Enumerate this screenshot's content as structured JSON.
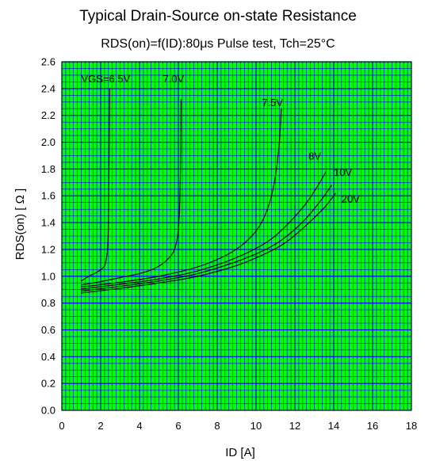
{
  "chart_data": {
    "type": "line",
    "title": "Typical Drain-Source on-state Resistance",
    "subtitle": "RDS(on)=f(ID):80μs Pulse test, Tch=25°C",
    "xlabel": "ID [A]",
    "ylabel": "RDS(on) [ Ω ]",
    "xlim": [
      0,
      18
    ],
    "ylim": [
      0,
      2.6
    ],
    "x_ticks": [
      "0",
      "2",
      "4",
      "6",
      "8",
      "10",
      "12",
      "14",
      "16",
      "18"
    ],
    "y_ticks": [
      "0.0",
      "0.2",
      "0.4",
      "0.6",
      "0.8",
      "1.0",
      "1.2",
      "1.4",
      "1.6",
      "1.8",
      "2.0",
      "2.2",
      "2.4",
      "2.6"
    ],
    "grid": true,
    "colors": {
      "background": "#00ff00",
      "grid": "#0000ff",
      "curve": "#000000"
    },
    "series": [
      {
        "name": "VGS=6.5V",
        "x": [
          1.0,
          1.4,
          1.8,
          2.1,
          2.25,
          2.35,
          2.4,
          2.43,
          2.46
        ],
        "y": [
          0.965,
          1.0,
          1.03,
          1.06,
          1.1,
          1.2,
          1.4,
          1.8,
          2.4
        ]
      },
      {
        "name": "7.0V",
        "x": [
          1.0,
          2.0,
          3.0,
          4.0,
          4.8,
          5.4,
          5.8,
          6.0,
          6.08,
          6.12,
          6.14
        ],
        "y": [
          0.935,
          0.96,
          0.99,
          1.02,
          1.06,
          1.12,
          1.2,
          1.35,
          1.6,
          1.95,
          2.32
        ]
      },
      {
        "name": "7.5V",
        "x": [
          1.0,
          3.0,
          5.0,
          7.0,
          8.5,
          9.5,
          10.2,
          10.7,
          11.0,
          11.2,
          11.3
        ],
        "y": [
          0.92,
          0.955,
          1.0,
          1.07,
          1.16,
          1.26,
          1.38,
          1.55,
          1.75,
          2.0,
          2.25
        ]
      },
      {
        "name": "8V",
        "x": [
          1.0,
          3.0,
          5.0,
          7.0,
          9.0,
          10.5,
          11.5,
          12.5,
          13.2,
          13.6
        ],
        "y": [
          0.905,
          0.94,
          0.98,
          1.04,
          1.14,
          1.25,
          1.37,
          1.53,
          1.68,
          1.78
        ]
      },
      {
        "name": "10V",
        "x": [
          1.0,
          3.0,
          5.0,
          7.0,
          9.0,
          10.5,
          11.5,
          12.5,
          13.3,
          13.9
        ],
        "y": [
          0.89,
          0.925,
          0.965,
          1.02,
          1.11,
          1.2,
          1.29,
          1.42,
          1.56,
          1.68
        ]
      },
      {
        "name": "20V",
        "x": [
          1.0,
          3.0,
          5.0,
          7.0,
          9.0,
          10.5,
          11.5,
          12.5,
          13.5,
          14.1
        ],
        "y": [
          0.875,
          0.91,
          0.95,
          1.0,
          1.08,
          1.17,
          1.25,
          1.37,
          1.51,
          1.62
        ]
      }
    ],
    "curve_labels": [
      {
        "text": "VGS=6.5V",
        "x": 1.0,
        "y": 2.475
      },
      {
        "text": "7.0V",
        "x": 5.2,
        "y": 2.475
      },
      {
        "text": "7.5V",
        "x": 10.3,
        "y": 2.3
      },
      {
        "text": "8V",
        "x": 12.7,
        "y": 1.9
      },
      {
        "text": "10V",
        "x": 14.0,
        "y": 1.78
      },
      {
        "text": "20V",
        "x": 14.4,
        "y": 1.58
      }
    ]
  }
}
